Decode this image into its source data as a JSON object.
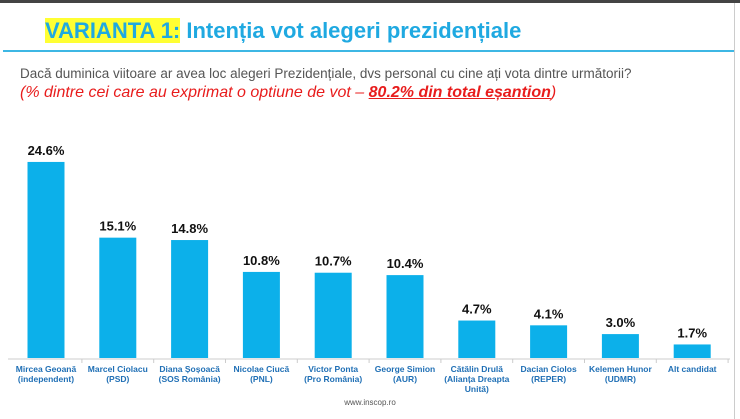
{
  "header": {
    "title_highlight": "VARIANTA 1:",
    "title_rest": " Intenția vot alegeri prezidențiale"
  },
  "question": "Dacă duminica viitoare ar avea loc alegeri Prezidențiale, dvs personal cu cine ați vota dintre următorii?",
  "note": {
    "prefix": "(% dintre cei care au exprimat o optiune de vot – ",
    "emphasis": "80.2% din total eșantion",
    "suffix": ")"
  },
  "source": "www.inscop.ro",
  "chart_data": {
    "type": "bar",
    "categories": [
      [
        "Mircea Geoană",
        "(independent)"
      ],
      [
        "Marcel Ciolacu",
        "(PSD)"
      ],
      [
        "Diana Șoșoacă",
        "(SOS România)"
      ],
      [
        "Nicolae Ciucă",
        "(PNL)"
      ],
      [
        "Victor Ponta",
        "(Pro România)"
      ],
      [
        "George Simion",
        "(AUR)"
      ],
      [
        "Cătălin Drulă",
        "(Alianța Dreapta",
        "Unită)"
      ],
      [
        "Dacian Ciolos",
        "(REPER)"
      ],
      [
        "Kelemen Hunor",
        "(UDMR)"
      ],
      [
        "Alt candidat"
      ]
    ],
    "values": [
      24.6,
      15.1,
      14.8,
      10.8,
      10.7,
      10.4,
      4.7,
      4.1,
      3.0,
      1.7
    ],
    "data_labels": [
      "24.6%",
      "15.1%",
      "14.8%",
      "10.8%",
      "10.7%",
      "10.4%",
      "4.7%",
      "4.1%",
      "3.0%",
      "1.7%"
    ],
    "bar_color": "#0cb0ea",
    "label_color": "#1f6fb5",
    "ylim": [
      0,
      25
    ],
    "grid": false
  }
}
